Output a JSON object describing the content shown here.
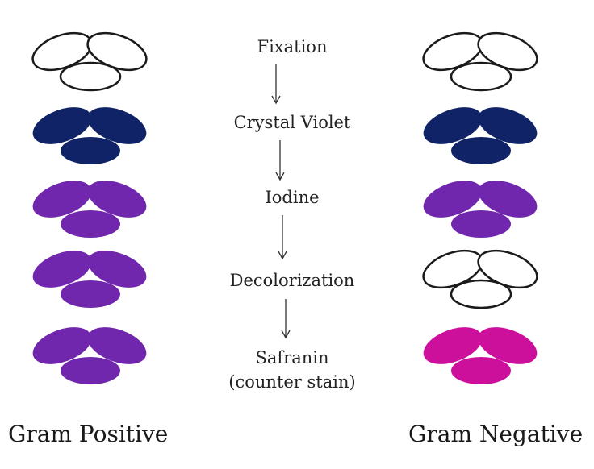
{
  "colors": {
    "outline": "#1a1a1a",
    "unstained_fill": "#ffffff",
    "crystal_violet": "#0f2366",
    "purple": "#7027ad",
    "safranin": "#cc109b",
    "arrow": "#333333"
  },
  "steps": [
    {
      "label": "Fixation"
    },
    {
      "label": "Crystal Violet"
    },
    {
      "label": "Iodine"
    },
    {
      "label": "Decolorization"
    },
    {
      "label": "Safranin",
      "sublabel": "(counter stain)"
    }
  ],
  "columns": {
    "gram_positive": {
      "label": "Gram Positive",
      "stages": [
        "unstained",
        "crystal_violet",
        "purple",
        "purple",
        "purple"
      ]
    },
    "gram_negative": {
      "label": "Gram Negative",
      "stages": [
        "unstained",
        "crystal_violet",
        "purple",
        "unstained",
        "safranin"
      ]
    }
  }
}
